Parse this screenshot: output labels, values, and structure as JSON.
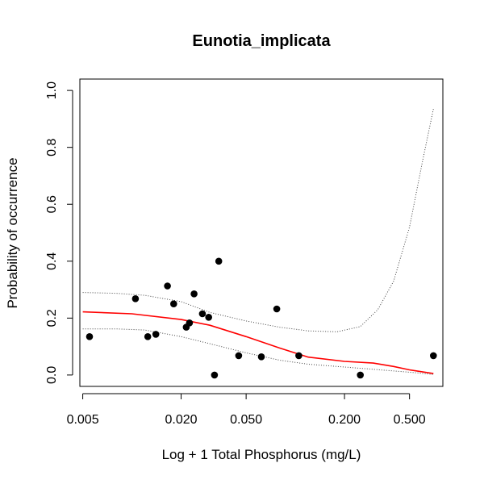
{
  "chart_data": {
    "type": "scatter",
    "title": "Eunotia_implicata",
    "xlabel": "Log + 1 Total Phosphorus (mg/L)",
    "ylabel": "Probability of occurrence",
    "x_scale": "log",
    "xlim": [
      0.0048,
      0.8
    ],
    "ylim": [
      -0.04,
      1.04
    ],
    "x_ticks": [
      0.005,
      0.02,
      0.05,
      0.2,
      0.5
    ],
    "x_tick_labels": [
      "0.005",
      "0.020",
      "0.050",
      "0.200",
      "0.500"
    ],
    "y_ticks": [
      0.0,
      0.2,
      0.4,
      0.6,
      0.8,
      1.0
    ],
    "y_tick_labels": [
      "0.0",
      "0.2",
      "0.4",
      "0.6",
      "0.8",
      "1.0"
    ],
    "grid": false,
    "legend": "none",
    "points": [
      {
        "x": 0.0055,
        "y": 0.135
      },
      {
        "x": 0.0105,
        "y": 0.268
      },
      {
        "x": 0.0125,
        "y": 0.135
      },
      {
        "x": 0.014,
        "y": 0.143
      },
      {
        "x": 0.0165,
        "y": 0.313
      },
      {
        "x": 0.018,
        "y": 0.25
      },
      {
        "x": 0.0215,
        "y": 0.168
      },
      {
        "x": 0.0225,
        "y": 0.183
      },
      {
        "x": 0.024,
        "y": 0.285
      },
      {
        "x": 0.027,
        "y": 0.215
      },
      {
        "x": 0.0295,
        "y": 0.203
      },
      {
        "x": 0.032,
        "y": 0.0
      },
      {
        "x": 0.034,
        "y": 0.4
      },
      {
        "x": 0.045,
        "y": 0.068
      },
      {
        "x": 0.062,
        "y": 0.064
      },
      {
        "x": 0.077,
        "y": 0.232
      },
      {
        "x": 0.105,
        "y": 0.068
      },
      {
        "x": 0.25,
        "y": 0.0
      },
      {
        "x": 0.7,
        "y": 0.068
      }
    ],
    "series": [
      {
        "style": "solid",
        "color": "#ff0000",
        "x": [
          0.005,
          0.01,
          0.02,
          0.03,
          0.05,
          0.08,
          0.12,
          0.2,
          0.3,
          0.4,
          0.5,
          0.7
        ],
        "y": [
          0.222,
          0.215,
          0.195,
          0.175,
          0.135,
          0.095,
          0.063,
          0.048,
          0.042,
          0.03,
          0.018,
          0.005
        ]
      },
      {
        "style": "dotted",
        "color": "#444444",
        "x": [
          0.005,
          0.008,
          0.012,
          0.02,
          0.03,
          0.05,
          0.08,
          0.12,
          0.18,
          0.25,
          0.32,
          0.4,
          0.5,
          0.6,
          0.7
        ],
        "y": [
          0.29,
          0.287,
          0.28,
          0.258,
          0.22,
          0.19,
          0.168,
          0.155,
          0.152,
          0.17,
          0.23,
          0.33,
          0.52,
          0.75,
          0.935
        ]
      },
      {
        "style": "dotted",
        "color": "#444444",
        "x": [
          0.005,
          0.008,
          0.012,
          0.02,
          0.03,
          0.05,
          0.08,
          0.12,
          0.2,
          0.3,
          0.45,
          0.55,
          0.7
        ],
        "y": [
          0.162,
          0.162,
          0.158,
          0.135,
          0.11,
          0.078,
          0.052,
          0.038,
          0.028,
          0.02,
          0.012,
          0.008,
          0.002
        ]
      }
    ]
  }
}
